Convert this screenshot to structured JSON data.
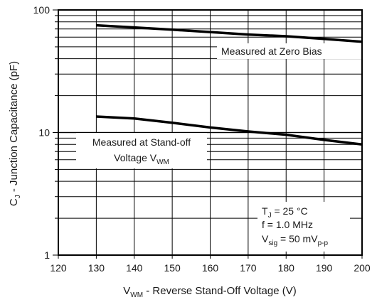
{
  "chart_data": {
    "type": "line",
    "x_scale": "linear",
    "y_scale": "log",
    "xlim": [
      120,
      200
    ],
    "ylim": [
      1,
      100
    ],
    "grid": true,
    "x_ticks": [
      "120",
      "130",
      "140",
      "150",
      "160",
      "170",
      "180",
      "190",
      "200"
    ],
    "y_ticks": [
      "1",
      "10",
      "100"
    ],
    "ylabel": {
      "main": "C",
      "sub": "J",
      "rest": " - Junction Capacitance (pF)"
    },
    "xlabel": {
      "main": "V",
      "sub": "WM",
      "rest": " - Reverse Stand-Off Voltage (V)"
    },
    "series": [
      {
        "name": "Measured at Zero Bias",
        "x": [
          130,
          140,
          150,
          160,
          170,
          180,
          190,
          200
        ],
        "y": [
          75,
          72,
          69,
          66,
          63,
          61,
          58,
          55
        ]
      },
      {
        "name": "Measured at Stand-off Voltage V_WM",
        "x": [
          130,
          140,
          150,
          160,
          170,
          180,
          190,
          200
        ],
        "y": [
          13.5,
          13,
          12,
          11,
          10.2,
          9.6,
          8.7,
          8
        ]
      }
    ],
    "annotations": {
      "zero_bias": "Measured at Zero Bias",
      "standoff_line1": "Measured at Stand-off",
      "standoff_line2": {
        "main": "Voltage V",
        "sub": "WM"
      }
    },
    "conditions": {
      "tj": {
        "main": "T",
        "sub": "J",
        "rest": " = 25 °C"
      },
      "freq": "f = 1.0 MHz",
      "vsig": {
        "main": "V",
        "sub": "sig",
        "mid": " = 50 mV",
        "sub2": "p-p"
      }
    }
  }
}
